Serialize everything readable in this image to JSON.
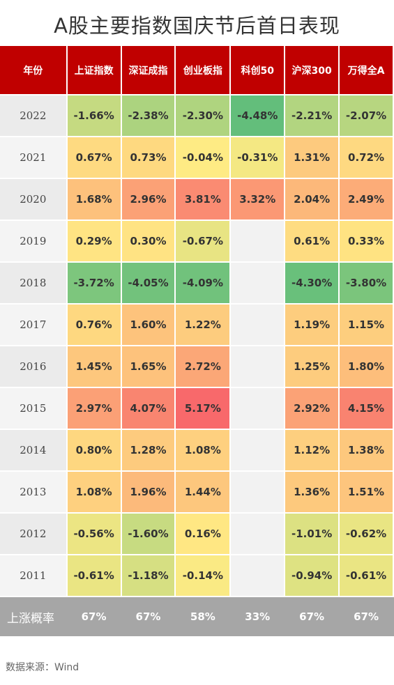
{
  "title": "A股主要指数国庆节后首日表现",
  "source": "数据来源：Wind",
  "watermark": "Wind",
  "colors": {
    "header_bg": "#c00000",
    "footer_bg": "#a6a6a6",
    "year_bg": "#ebebeb",
    "empty_bg": "#f2f2f2",
    "scale_low": "#63be7b",
    "scale_mid": "#ffeb84",
    "scale_high": "#f8696b"
  },
  "chart_data": {
    "type": "heatmap",
    "corner_label": "年份",
    "columns": [
      "上证指数",
      "深证成指",
      "创业板指",
      "科创50",
      "沪深300",
      "万得全A"
    ],
    "rows": [
      "2022",
      "2021",
      "2020",
      "2019",
      "2018",
      "2017",
      "2016",
      "2015",
      "2014",
      "2013",
      "2012",
      "2011"
    ],
    "values": [
      [
        -1.66,
        -2.38,
        -2.3,
        -4.48,
        -2.21,
        -2.07
      ],
      [
        0.67,
        0.73,
        -0.04,
        -0.31,
        1.31,
        0.72
      ],
      [
        1.68,
        2.96,
        3.81,
        3.32,
        2.04,
        2.49
      ],
      [
        0.29,
        0.3,
        -0.67,
        null,
        0.61,
        0.33
      ],
      [
        -3.72,
        -4.05,
        -4.09,
        null,
        -4.3,
        -3.8
      ],
      [
        0.76,
        1.6,
        1.22,
        null,
        1.19,
        1.15
      ],
      [
        1.45,
        1.65,
        2.72,
        null,
        1.25,
        1.8
      ],
      [
        2.97,
        4.07,
        5.17,
        null,
        2.92,
        4.15
      ],
      [
        0.8,
        1.28,
        1.08,
        null,
        1.12,
        1.38
      ],
      [
        1.08,
        1.96,
        1.44,
        null,
        1.36,
        1.51
      ],
      [
        -0.56,
        -1.6,
        0.16,
        null,
        -1.01,
        -0.62
      ],
      [
        -0.61,
        -1.18,
        -0.14,
        null,
        -0.94,
        -0.61
      ]
    ],
    "unit": "%",
    "summary_label": "上涨概率",
    "summary_values": [
      "67%",
      "67%",
      "58%",
      "33%",
      "67%",
      "67%"
    ]
  }
}
